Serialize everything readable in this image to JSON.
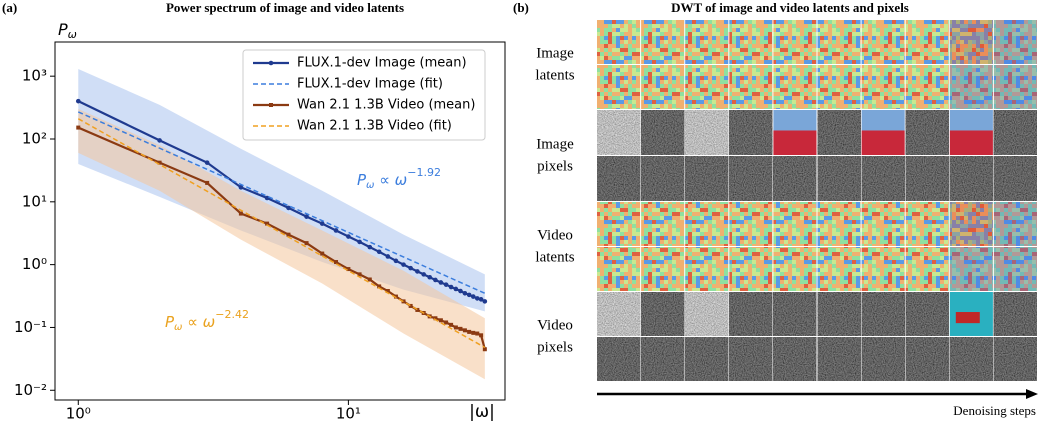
{
  "panel_labels": [
    "(a)",
    "(b)"
  ],
  "chart_data": {
    "type": "line",
    "title": "Power spectrum of image and video latents",
    "x_label": "|ω|",
    "y_label": [
      "P",
      "ω"
    ],
    "xscale": "log",
    "yscale": "log",
    "xlim": [
      0.82,
      38
    ],
    "ylim": [
      0.007,
      3500
    ],
    "xticks": [
      {
        "value": 1,
        "label": "10⁰"
      },
      {
        "value": 10,
        "label": "10¹"
      }
    ],
    "yticks": [
      {
        "value": 0.01,
        "label": "10⁻²"
      },
      {
        "value": 0.1,
        "label": "10⁻¹"
      },
      {
        "value": 1,
        "label": "10⁰"
      },
      {
        "value": 10,
        "label": "10¹"
      },
      {
        "value": 100,
        "label": "10²"
      },
      {
        "value": 1000,
        "label": "10³"
      }
    ],
    "legend": "upper right",
    "series": [
      {
        "name": "FLUX.1-dev Image (mean)",
        "color": "#1f3a8f",
        "style": "solid",
        "marker": "circle",
        "x": [
          1,
          2,
          3,
          4,
          5,
          6,
          7,
          8,
          9,
          10,
          11,
          12,
          13,
          14,
          15,
          16,
          17,
          18,
          19,
          20,
          21,
          22,
          23,
          24,
          25,
          26,
          27,
          28,
          29,
          30,
          31,
          32
        ],
        "values": [
          400,
          95,
          42,
          17,
          11.5,
          8,
          5.8,
          4.5,
          3.5,
          2.8,
          2.3,
          1.9,
          1.6,
          1.35,
          1.15,
          1.0,
          0.88,
          0.78,
          0.7,
          0.63,
          0.57,
          0.52,
          0.48,
          0.44,
          0.41,
          0.38,
          0.35,
          0.33,
          0.31,
          0.29,
          0.28,
          0.26
        ],
        "band_color": "#a9c3ee",
        "band_x": [
          1,
          2,
          4,
          8,
          16,
          32
        ],
        "band_upper": [
          1300,
          350,
          70,
          15,
          3,
          0.7
        ],
        "band_lower": [
          40,
          12,
          3.5,
          1.1,
          0.4,
          0.18
        ]
      },
      {
        "name": "FLUX.1-dev Image (fit)",
        "color": "#3b7ddd",
        "style": "dashed",
        "marker": "none",
        "x": [
          1,
          32
        ],
        "values": [
          270,
          0.35
        ]
      },
      {
        "name": "Wan 2.1 1.3B Video (mean)",
        "color": "#8b3a12",
        "style": "solid",
        "marker": "square",
        "x": [
          1,
          2,
          3,
          4,
          5,
          6,
          7,
          8,
          9,
          10,
          11,
          12,
          13,
          14,
          15,
          16,
          17,
          18,
          19,
          20,
          21,
          22,
          23,
          24,
          25,
          26,
          27,
          28,
          29,
          30,
          31,
          32
        ],
        "values": [
          152,
          42,
          20,
          6.5,
          4.5,
          3,
          2.2,
          1.5,
          1.1,
          0.85,
          0.7,
          0.58,
          0.45,
          0.38,
          0.31,
          0.26,
          0.22,
          0.19,
          0.17,
          0.15,
          0.14,
          0.13,
          0.12,
          0.11,
          0.1,
          0.095,
          0.09,
          0.085,
          0.082,
          0.08,
          0.075,
          0.045
        ],
        "band_color": "#f4c79c",
        "band_x": [
          1,
          2,
          4,
          8,
          16,
          32
        ],
        "band_upper": [
          300,
          80,
          15,
          3.5,
          0.8,
          0.14
        ],
        "band_lower": [
          60,
          15,
          2.5,
          0.5,
          0.08,
          0.015
        ]
      },
      {
        "name": "Wan 2.1 1.3B Video (fit)",
        "color": "#f0a020",
        "style": "dashed",
        "marker": "none",
        "x": [
          1,
          32
        ],
        "values": [
          210,
          0.048
        ]
      }
    ],
    "annotations": [
      {
        "parts": [
          "P",
          "ω",
          " ∝ ω",
          "−1.92"
        ],
        "color": "#3b7ddd"
      },
      {
        "parts": [
          "P",
          "ω",
          " ∝ ω",
          "−2.42"
        ],
        "color": "#eaa21e"
      }
    ]
  },
  "panel_b": {
    "title": "DWT of image and video latents and pixels",
    "row_labels": [
      [
        "Image",
        "latents"
      ],
      [
        "Image",
        "pixels"
      ],
      [
        "Video",
        "latents"
      ],
      [
        "Video",
        "pixels"
      ]
    ],
    "axis_label": "Denoising steps"
  }
}
